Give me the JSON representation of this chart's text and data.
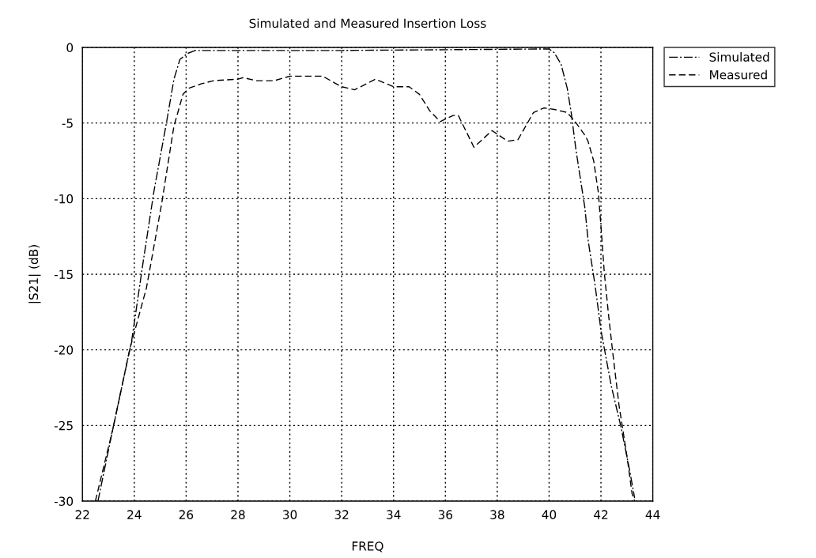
{
  "chart_data": {
    "type": "line",
    "title": "Simulated and Measured Insertion Loss",
    "xlabel": "FREQ",
    "ylabel": "|S21| (dB)",
    "xlim": [
      22,
      44
    ],
    "xticks": [
      22,
      24,
      26,
      28,
      30,
      32,
      34,
      36,
      38,
      40,
      42,
      44
    ],
    "ylim": [
      -30,
      0
    ],
    "yticks": [
      0,
      -5,
      -10,
      -15,
      -20,
      -25,
      -30
    ],
    "grid": true,
    "legend": "top right",
    "marker": "none",
    "series": [
      {
        "name": "Simulated",
        "color": "#000000",
        "line_style": "dashdot",
        "x": [
          22.6,
          23.2,
          23.9,
          24.35,
          24.76,
          25.24,
          25.53,
          25.76,
          26.05,
          26.35,
          32,
          40,
          40.2,
          40.46,
          40.7,
          40.86,
          41.03,
          41.2,
          41.38,
          41.5,
          41.78,
          42,
          42.4,
          42.76,
          43.1,
          43.3
        ],
        "values": [
          -30,
          -25,
          -19.4,
          -14.1,
          -9.5,
          -5,
          -2.1,
          -0.8,
          -0.4,
          -0.2,
          -0.2,
          -0.1,
          -0.35,
          -1.1,
          -2.7,
          -4.4,
          -6.7,
          -8.6,
          -10.6,
          -12.7,
          -15.8,
          -18.7,
          -22.4,
          -25,
          -27.9,
          -29.8
        ]
      },
      {
        "name": "Measured",
        "color": "#000000",
        "line_style": "dashed",
        "x": [
          22.5,
          23.18,
          23.82,
          24.47,
          25.06,
          25.53,
          25.88,
          26.1,
          26.6,
          27.06,
          28,
          28.2,
          28.7,
          29.4,
          30,
          31.26,
          32,
          32.5,
          33.3,
          34,
          34.6,
          35,
          35.4,
          35.8,
          36.3,
          36.5,
          37.1,
          37.8,
          38.4,
          38.8,
          39.4,
          39.8,
          40.2,
          40.7,
          41,
          41.38,
          41.5,
          41.72,
          41.9,
          42,
          42.13,
          42.3,
          42.47,
          42.7,
          43,
          43.2,
          43.3
        ],
        "values": [
          -30,
          -25.2,
          -20,
          -15.9,
          -10.3,
          -5.2,
          -3.1,
          -2.7,
          -2.4,
          -2.2,
          -2.1,
          -2,
          -2.2,
          -2.2,
          -1.9,
          -1.9,
          -2.6,
          -2.8,
          -2.1,
          -2.6,
          -2.6,
          -3.1,
          -4.2,
          -4.9,
          -4.5,
          -4.5,
          -6.6,
          -5.5,
          -6.2,
          -6.1,
          -4.3,
          -4,
          -4.1,
          -4.3,
          -4.9,
          -5.8,
          -6.2,
          -7.5,
          -9.6,
          -11.8,
          -14.9,
          -17.8,
          -20.4,
          -23.7,
          -27,
          -29.5,
          -30
        ]
      }
    ]
  }
}
